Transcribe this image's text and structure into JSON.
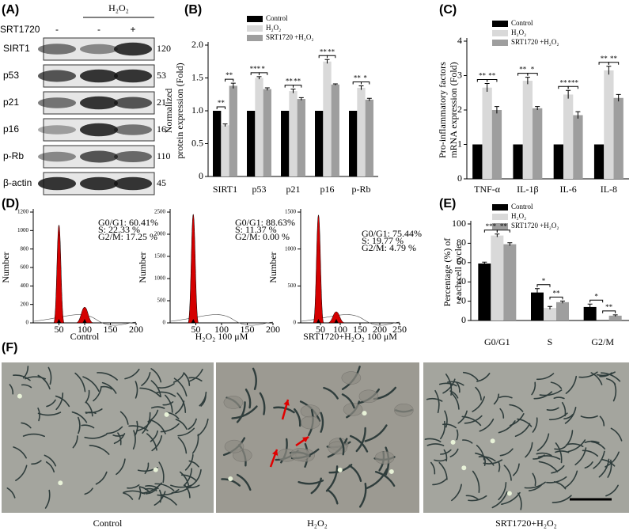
{
  "blot": {
    "panel": "(A)",
    "treatment_label": "H₂O₂",
    "inhibitor_label": "SRT1720",
    "inhibitor_signs": [
      "-",
      "-",
      "+"
    ],
    "rows": [
      {
        "protein": "SIRT1",
        "kda": 120
      },
      {
        "protein": "p53",
        "kda": 53
      },
      {
        "protein": "p21",
        "kda": 21
      },
      {
        "protein": "p16",
        "kda": 16
      },
      {
        "protein": "p-Rb",
        "kda": 110
      },
      {
        "protein": "β-actin",
        "kda": 45
      }
    ]
  },
  "cell_cycle_panel": "(D)",
  "micrographs": {
    "panel": "(F)",
    "captions": [
      "Control",
      "H₂O₂",
      "SRT1720+H₂O₂"
    ]
  },
  "chart_data": [
    {
      "type": "bar",
      "panel": "(B)",
      "ylabel": [
        "Normalized",
        "protein expression (Fold)"
      ],
      "categories": [
        "SIRT1",
        "p53",
        "p21",
        "p16",
        "p-Rb"
      ],
      "series": [
        {
          "name": "Control",
          "color": "#000000",
          "values": [
            1.0,
            1.0,
            1.0,
            1.0,
            1.0
          ]
        },
        {
          "name": "H₂O₂",
          "color": "#d9d9d9",
          "values": [
            0.78,
            1.5,
            1.3,
            1.75,
            1.35
          ],
          "errors": [
            0.02,
            0.02,
            0.03,
            0.03,
            0.03
          ]
        },
        {
          "name": "SRT1720 +H₂O₂",
          "color": "#9e9e9e",
          "values": [
            1.38,
            1.33,
            1.18,
            1.4,
            1.17
          ],
          "errors": [
            0.04,
            0.02,
            0.02,
            0.01,
            0.02
          ]
        }
      ],
      "significance": [
        [
          "**",
          "**"
        ],
        [
          "***",
          "*"
        ],
        [
          "**",
          "**"
        ],
        [
          "**",
          "**"
        ],
        [
          "**",
          "*"
        ]
      ],
      "ylim": [
        0,
        2
      ],
      "yticks": [
        0,
        0.5,
        {
          "value": 1,
          "label": "1.0"
        },
        1.5,
        {
          "value": 2,
          "label": "2.0"
        }
      ]
    },
    {
      "type": "bar",
      "panel": "(C)",
      "ylabel": [
        "Pro-inflammatory factors",
        "mRNA expression (Fold)"
      ],
      "categories": [
        "TNF-α",
        "IL-1β",
        "IL-6",
        "IL-8"
      ],
      "series": [
        {
          "name": "Control",
          "color": "#000000",
          "values": [
            1,
            1,
            1,
            1
          ]
        },
        {
          "name": "H₂O₂",
          "color": "#d9d9d9",
          "values": [
            2.65,
            2.85,
            2.45,
            3.15
          ],
          "errors": [
            0.12,
            0.1,
            0.12,
            0.12
          ]
        },
        {
          "name": "SRT1720 +H₂O₂",
          "color": "#9e9e9e",
          "values": [
            2.0,
            2.05,
            1.85,
            2.35
          ],
          "errors": [
            0.1,
            0.05,
            0.1,
            0.1
          ]
        }
      ],
      "significance": [
        [
          "**",
          "**"
        ],
        [
          "**",
          "*"
        ],
        [
          "**",
          "***"
        ],
        [
          "**",
          "**"
        ]
      ],
      "ylim": [
        0,
        4
      ],
      "yticks": [
        0,
        1,
        2,
        3,
        4
      ]
    },
    {
      "type": "bar",
      "panel": "(E)",
      "ylabel": [
        "Percentage (%) of",
        "each cell cycle"
      ],
      "categories": [
        "G0/G1",
        "S",
        "G2/M"
      ],
      "series": [
        {
          "name": "Control",
          "color": "#000000",
          "values": [
            59,
            29,
            14
          ],
          "errors": [
            1.5,
            4,
            3
          ]
        },
        {
          "name": "H₂O₂",
          "color": "#d9d9d9",
          "values": [
            88,
            13,
            0
          ],
          "errors": [
            1.5,
            1.5,
            0
          ]
        },
        {
          "name": "SRT1720 +H₂O₂",
          "color": "#9e9e9e",
          "values": [
            79,
            19,
            5
          ],
          "errors": [
            1.5,
            1.2,
            0.8
          ]
        }
      ],
      "significance": [
        [
          "***",
          "**"
        ],
        [
          "*",
          "**"
        ],
        [
          "*",
          "**"
        ]
      ],
      "ylim": [
        0,
        100
      ],
      "yticks": [
        0,
        20,
        40,
        60,
        80,
        100
      ]
    },
    {
      "type": "cytometry",
      "xlabel": "Control",
      "ylabel": "Number",
      "stats": [
        "G0/G1: 60.41%",
        "S: 22.33 %",
        "G2/M: 17.25 %"
      ],
      "peaks": [
        {
          "x": 50,
          "height": 1060
        },
        {
          "x": 100,
          "height": 170
        }
      ],
      "xlim": [
        0,
        200
      ],
      "xticks": [
        50,
        100,
        150,
        200
      ],
      "ylim": [
        0,
        1200
      ],
      "yticks": [
        0,
        200,
        400,
        600,
        800,
        1000,
        1200
      ]
    },
    {
      "type": "cytometry",
      "xlabel": "H₂O₂ 100 μM",
      "ylabel": "Number",
      "stats": [
        "G0/G1: 88.63%",
        "S: 11.37 %",
        "G2/M: 0.00 %"
      ],
      "peaks": [
        {
          "x": 45,
          "height": 2450
        }
      ],
      "xlim": [
        0,
        200
      ],
      "xticks": [
        50,
        100,
        150,
        200
      ],
      "ylim": [
        0,
        2500
      ],
      "yticks": [
        0,
        500,
        1000,
        1500,
        2000,
        2500
      ]
    },
    {
      "type": "cytometry",
      "xlabel": "SRT1720+H₂O₂ 100 μM",
      "ylabel": "Number",
      "stats": [
        "G0/G1: 75.44%",
        "S: 19.77 %",
        "G2/M: 4.79 %"
      ],
      "peaks": [
        {
          "x": 45,
          "height": 1460
        },
        {
          "x": 90,
          "height": 150
        }
      ],
      "xlim": [
        0,
        250
      ],
      "xticks": [
        50,
        100,
        150,
        200,
        250
      ],
      "ylim": [
        0,
        1500
      ],
      "yticks": [
        0,
        500,
        1000,
        1500
      ]
    }
  ]
}
